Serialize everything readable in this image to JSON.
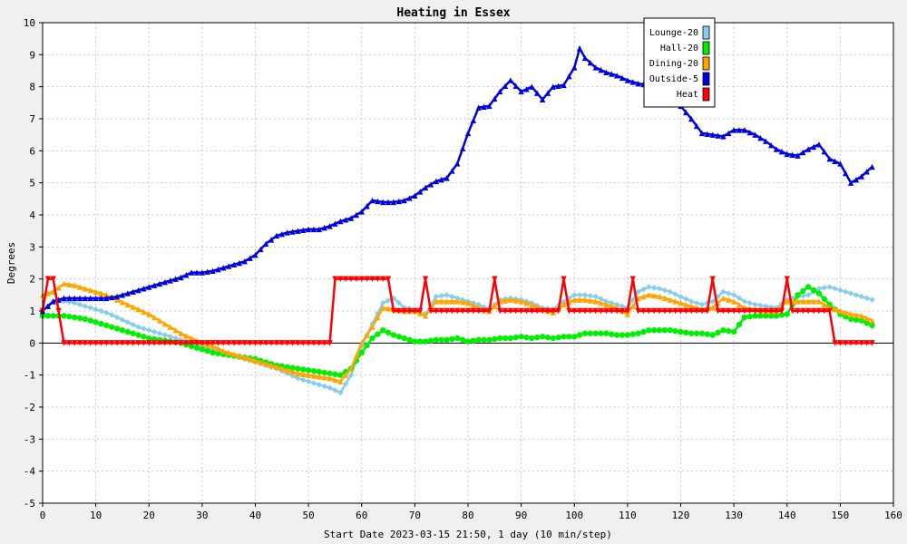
{
  "chart_data": {
    "type": "line",
    "title": "Heating in Essex",
    "xlabel": "Start Date 2023-03-15 21:50, 1 day (10 min/step)",
    "ylabel": "Degrees",
    "xlim": [
      0,
      160
    ],
    "ylim": [
      -5,
      10
    ],
    "xticks": [
      0,
      10,
      20,
      30,
      40,
      50,
      60,
      70,
      80,
      90,
      100,
      110,
      120,
      130,
      140,
      150,
      160
    ],
    "yticks": [
      -5,
      -4,
      -3,
      -2,
      -1,
      0,
      1,
      2,
      3,
      4,
      5,
      6,
      7,
      8,
      9,
      10
    ],
    "grid": true,
    "legend_position": "top-right",
    "series": [
      {
        "name": "Lounge-20",
        "color": "#87ceeb",
        "marker": "diamond",
        "x": [
          0,
          2,
          4,
          6,
          8,
          10,
          12,
          14,
          16,
          18,
          20,
          22,
          24,
          26,
          28,
          30,
          32,
          34,
          36,
          38,
          40,
          42,
          44,
          46,
          48,
          50,
          52,
          54,
          56,
          58,
          60,
          62,
          64,
          66,
          68,
          70,
          72,
          74,
          76,
          78,
          80,
          82,
          84,
          86,
          88,
          90,
          92,
          94,
          96,
          98,
          100,
          102,
          104,
          106,
          108,
          110,
          112,
          114,
          116,
          118,
          120,
          122,
          124,
          126,
          128,
          130,
          132,
          134,
          136,
          138,
          140,
          142,
          144,
          146,
          148,
          150,
          152,
          154,
          156
        ],
        "y": [
          1.0,
          1.3,
          1.3,
          1.25,
          1.15,
          1.05,
          0.95,
          0.8,
          0.65,
          0.5,
          0.4,
          0.3,
          0.2,
          0.1,
          0.0,
          -0.1,
          -0.2,
          -0.3,
          -0.4,
          -0.5,
          -0.6,
          -0.7,
          -0.8,
          -0.95,
          -1.1,
          -1.2,
          -1.3,
          -1.4,
          -1.55,
          -1.0,
          -0.1,
          0.6,
          1.25,
          1.4,
          1.1,
          1.05,
          0.9,
          1.45,
          1.5,
          1.4,
          1.3,
          1.2,
          1.05,
          1.35,
          1.4,
          1.35,
          1.25,
          1.1,
          1.05,
          1.3,
          1.5,
          1.5,
          1.45,
          1.3,
          1.2,
          1.1,
          1.6,
          1.75,
          1.7,
          1.6,
          1.45,
          1.3,
          1.2,
          1.3,
          1.6,
          1.5,
          1.3,
          1.2,
          1.15,
          1.1,
          1.35,
          1.45,
          1.5,
          1.7,
          1.75,
          1.65,
          1.55,
          1.45,
          1.35
        ]
      },
      {
        "name": "Hall-20",
        "color": "#00ee00",
        "marker": "circle",
        "x": [
          0,
          2,
          4,
          6,
          8,
          10,
          12,
          14,
          16,
          18,
          20,
          22,
          24,
          26,
          28,
          30,
          32,
          34,
          36,
          38,
          40,
          42,
          44,
          46,
          48,
          50,
          52,
          54,
          56,
          58,
          60,
          62,
          64,
          66,
          68,
          70,
          72,
          74,
          76,
          78,
          80,
          82,
          84,
          86,
          88,
          90,
          92,
          94,
          96,
          98,
          100,
          102,
          104,
          106,
          108,
          110,
          112,
          114,
          116,
          118,
          120,
          122,
          124,
          126,
          128,
          130,
          132,
          134,
          136,
          138,
          140,
          142,
          144,
          146,
          148,
          150,
          152,
          154,
          156
        ],
        "y": [
          0.85,
          0.85,
          0.85,
          0.8,
          0.75,
          0.65,
          0.55,
          0.45,
          0.35,
          0.25,
          0.15,
          0.1,
          0.05,
          0.0,
          -0.1,
          -0.2,
          -0.3,
          -0.35,
          -0.4,
          -0.45,
          -0.5,
          -0.6,
          -0.7,
          -0.75,
          -0.8,
          -0.85,
          -0.9,
          -0.95,
          -1.0,
          -0.8,
          -0.3,
          0.15,
          0.4,
          0.25,
          0.15,
          0.05,
          0.05,
          0.1,
          0.1,
          0.15,
          0.05,
          0.1,
          0.1,
          0.15,
          0.15,
          0.2,
          0.15,
          0.2,
          0.15,
          0.2,
          0.2,
          0.3,
          0.3,
          0.3,
          0.25,
          0.25,
          0.3,
          0.4,
          0.4,
          0.4,
          0.35,
          0.3,
          0.3,
          0.25,
          0.4,
          0.35,
          0.8,
          0.85,
          0.85,
          0.85,
          0.9,
          1.5,
          1.75,
          1.55,
          1.2,
          0.9,
          0.75,
          0.7,
          0.55
        ]
      },
      {
        "name": "Dining-20",
        "color": "#ffa500",
        "marker": "triangle",
        "x": [
          0,
          2,
          4,
          6,
          8,
          10,
          12,
          14,
          16,
          18,
          20,
          22,
          24,
          26,
          28,
          30,
          32,
          34,
          36,
          38,
          40,
          42,
          44,
          46,
          48,
          50,
          52,
          54,
          56,
          58,
          60,
          62,
          64,
          66,
          68,
          70,
          72,
          74,
          76,
          78,
          80,
          82,
          84,
          86,
          88,
          90,
          92,
          94,
          96,
          98,
          100,
          102,
          104,
          106,
          108,
          110,
          112,
          114,
          116,
          118,
          120,
          122,
          124,
          126,
          128,
          130,
          132,
          134,
          136,
          138,
          140,
          142,
          144,
          146,
          148,
          150,
          152,
          154,
          156
        ],
        "y": [
          1.5,
          1.6,
          1.85,
          1.8,
          1.7,
          1.6,
          1.5,
          1.35,
          1.2,
          1.05,
          0.9,
          0.7,
          0.5,
          0.3,
          0.15,
          0.0,
          -0.1,
          -0.25,
          -0.35,
          -0.45,
          -0.55,
          -0.65,
          -0.75,
          -0.85,
          -0.95,
          -1.0,
          -1.05,
          -1.1,
          -1.2,
          -0.8,
          0.0,
          0.5,
          1.1,
          1.05,
          1.0,
          1.0,
          0.85,
          1.3,
          1.3,
          1.3,
          1.25,
          1.1,
          1.0,
          1.3,
          1.35,
          1.3,
          1.2,
          1.05,
          0.95,
          1.2,
          1.35,
          1.35,
          1.3,
          1.2,
          1.1,
          0.9,
          1.4,
          1.5,
          1.45,
          1.35,
          1.25,
          1.15,
          1.05,
          1.1,
          1.4,
          1.3,
          1.1,
          1.05,
          1.0,
          1.0,
          1.3,
          1.3,
          1.3,
          1.3,
          1.1,
          1.0,
          0.9,
          0.85,
          0.7
        ]
      },
      {
        "name": "Outside-5",
        "color": "#0000dd",
        "marker": "triangle",
        "x": [
          0,
          2,
          4,
          6,
          8,
          10,
          12,
          14,
          16,
          18,
          20,
          22,
          24,
          26,
          28,
          30,
          32,
          34,
          36,
          38,
          40,
          42,
          44,
          46,
          48,
          50,
          52,
          54,
          56,
          58,
          60,
          62,
          64,
          66,
          68,
          70,
          72,
          74,
          76,
          78,
          80,
          82,
          84,
          86,
          88,
          90,
          92,
          94,
          96,
          98,
          100,
          101,
          102,
          104,
          106,
          108,
          110,
          112,
          114,
          116,
          118,
          120,
          122,
          124,
          126,
          128,
          130,
          132,
          134,
          136,
          138,
          140,
          142,
          144,
          146,
          148,
          150,
          152,
          154,
          156
        ],
        "y": [
          1.0,
          1.3,
          1.4,
          1.4,
          1.4,
          1.4,
          1.4,
          1.45,
          1.55,
          1.65,
          1.75,
          1.85,
          1.95,
          2.05,
          2.2,
          2.2,
          2.25,
          2.35,
          2.45,
          2.55,
          2.75,
          3.1,
          3.35,
          3.45,
          3.5,
          3.55,
          3.55,
          3.65,
          3.8,
          3.9,
          4.1,
          4.45,
          4.4,
          4.4,
          4.45,
          4.6,
          4.85,
          5.05,
          5.15,
          5.6,
          6.55,
          7.35,
          7.4,
          7.85,
          8.2,
          7.85,
          8.0,
          7.6,
          8.0,
          8.05,
          8.6,
          9.2,
          8.9,
          8.6,
          8.45,
          8.35,
          8.2,
          8.1,
          8.05,
          8.0,
          7.7,
          7.4,
          7.0,
          6.55,
          6.5,
          6.45,
          6.65,
          6.65,
          6.5,
          6.3,
          6.05,
          5.9,
          5.85,
          6.05,
          6.2,
          5.75,
          5.6,
          5.0,
          5.2,
          5.5
        ]
      },
      {
        "name": "Heat",
        "color": "#ff0000",
        "marker": "triangle-down",
        "x": [
          0,
          1,
          2,
          3,
          4,
          5,
          54,
          55,
          65,
          66,
          71,
          72,
          73,
          84,
          85,
          86,
          97,
          98,
          99,
          110,
          111,
          112,
          125,
          126,
          127,
          139,
          140,
          141,
          148,
          149,
          156
        ],
        "y": [
          1,
          2,
          2,
          1,
          0,
          0,
          0,
          2,
          2,
          1,
          1,
          2,
          1,
          1,
          2,
          1,
          1,
          2,
          1,
          1,
          2,
          1,
          1,
          2,
          1,
          1,
          2,
          1,
          1,
          0,
          0
        ]
      }
    ]
  }
}
